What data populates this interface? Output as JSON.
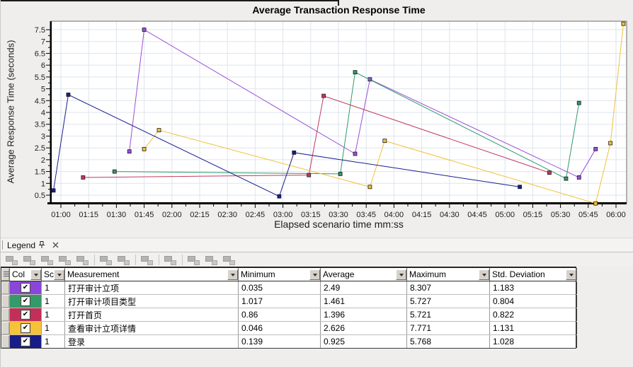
{
  "chart": {
    "title": "Average Transaction Response Time",
    "x_axis_label": "Elapsed scenario time mm:ss",
    "y_axis_label": "Average Response Time (seconds)"
  },
  "chart_data": {
    "type": "line",
    "title": "Average Transaction Response Time",
    "xlabel": "Elapsed scenario time mm:ss",
    "ylabel": "Average Response Time (seconds)",
    "x_tick_labels": [
      "01:00",
      "01:15",
      "01:30",
      "01:45",
      "02:00",
      "02:15",
      "02:30",
      "02:45",
      "03:00",
      "03:15",
      "03:30",
      "03:45",
      "04:00",
      "04:15",
      "04:30",
      "04:45",
      "05:00",
      "05:15",
      "05:30",
      "05:45",
      "06:00"
    ],
    "y_ticks": [
      0.5,
      1,
      1.5,
      2,
      2.5,
      3,
      3.5,
      4,
      4.5,
      5,
      5.5,
      6,
      6.5,
      7,
      7.5
    ],
    "ylim": [
      0.15,
      7.87
    ],
    "grid": true,
    "plot_bg": "#ffffff",
    "grid_color": "#dde5ee",
    "series": [
      {
        "name": "打开审计立项",
        "color": "#9b4fd6",
        "points": [
          [
            "01:37",
            2.35
          ],
          [
            "01:45",
            7.5
          ],
          [
            "03:39",
            2.25
          ],
          [
            "03:47",
            5.4
          ],
          [
            "05:40",
            1.25
          ],
          [
            "05:49",
            2.45
          ]
        ]
      },
      {
        "name": "打开审计项目类型",
        "color": "#2f9a6a",
        "points": [
          [
            "01:29",
            1.5
          ],
          [
            "03:31",
            1.4
          ],
          [
            "03:39",
            5.7
          ],
          [
            "05:33",
            1.2
          ],
          [
            "05:40",
            4.4
          ]
        ]
      },
      {
        "name": "打开首页",
        "color": "#c23a5e",
        "points": [
          [
            "01:12",
            1.25
          ],
          [
            "03:14",
            1.35
          ],
          [
            "03:22",
            4.7
          ],
          [
            "05:24",
            1.45
          ]
        ]
      },
      {
        "name": "查看审计立项详情",
        "color": "#eec238",
        "points": [
          [
            "01:45",
            2.45
          ],
          [
            "01:53",
            3.25
          ],
          [
            "03:47",
            0.85
          ],
          [
            "03:55",
            2.8
          ],
          [
            "05:49",
            0.15
          ],
          [
            "05:57",
            2.7
          ],
          [
            "06:04",
            7.75
          ]
        ]
      },
      {
        "name": "登录",
        "color": "#181d8f",
        "points": [
          [
            "00:56",
            0.7
          ],
          [
            "01:04",
            4.75
          ],
          [
            "02:58",
            0.45
          ],
          [
            "03:06",
            2.3
          ],
          [
            "05:08",
            0.85
          ]
        ]
      }
    ]
  },
  "legend_panel": {
    "title": "Legend",
    "window_icons": [
      "pin-icon",
      "close-icon"
    ],
    "toolbar_icons": [
      "show-measurement-icon",
      "hide-measurement-icon",
      "show-only-selected-icon",
      "show-all-measurements-icon",
      "filter-measurements-icon",
      "sort-measurements-icon",
      "configure-measurements-icon",
      "break-down-measurement-icon",
      "web-page-diagnostics-icon",
      "auto-correlate-icon",
      "cross-with-result-icon",
      "save-as-template-icon"
    ],
    "toolbar_groups": [
      5,
      2,
      1,
      1,
      3
    ],
    "table": {
      "columns": [
        "Col",
        "Sca",
        "Measurement",
        "Minimum",
        "Average",
        "Maximum",
        "Std. Deviation"
      ],
      "rows": [
        {
          "checked": true,
          "color": "#8a46d8",
          "scale": "1",
          "measurement": "打开审计立项",
          "minimum": "0.035",
          "average": "2.49",
          "maximum": "8.307",
          "std_deviation": "1.183"
        },
        {
          "checked": true,
          "color": "#349a68",
          "scale": "1",
          "measurement": "打开审计项目类型",
          "minimum": "1.017",
          "average": "1.461",
          "maximum": "5.727",
          "std_deviation": "0.804"
        },
        {
          "checked": true,
          "color": "#c22f58",
          "scale": "1",
          "measurement": "打开首页",
          "minimum": "0.86",
          "average": "1.396",
          "maximum": "5.721",
          "std_deviation": "0.822"
        },
        {
          "checked": true,
          "color": "#f6c338",
          "scale": "1",
          "measurement": "查看审计立项详情",
          "minimum": "0.046",
          "average": "2.626",
          "maximum": "7.771",
          "std_deviation": "1.131"
        },
        {
          "checked": true,
          "color": "#181c88",
          "scale": "1",
          "measurement": "登录",
          "minimum": "0.139",
          "average": "0.925",
          "maximum": "5.768",
          "std_deviation": "1.028"
        }
      ]
    }
  }
}
